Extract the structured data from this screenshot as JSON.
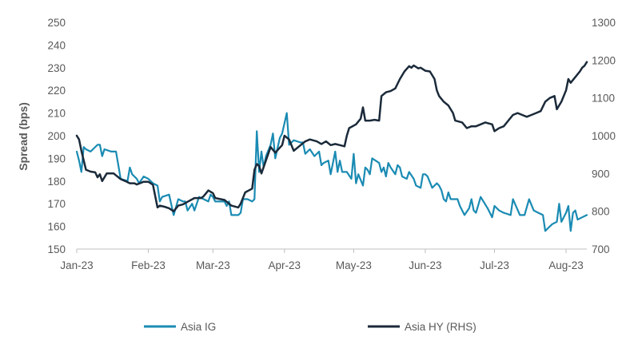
{
  "chart_data": {
    "type": "line",
    "title": "",
    "xlabel": "",
    "ylabel": "Spread (bps)",
    "ylim": [
      150,
      250
    ],
    "yticks": [
      150,
      160,
      170,
      180,
      190,
      200,
      210,
      220,
      230,
      240,
      250
    ],
    "y2lim": [
      700,
      1300
    ],
    "y2ticks": [
      700,
      800,
      900,
      1000,
      1100,
      1200,
      1300
    ],
    "xlim": [
      "2023-01-01",
      "2023-08-10"
    ],
    "xticks": [
      {
        "label": "Jan-23",
        "date": "2023-01-01"
      },
      {
        "label": "Feb-23",
        "date": "2023-02-01"
      },
      {
        "label": "Mar-23",
        "date": "2023-03-01"
      },
      {
        "label": "Apr-23",
        "date": "2023-04-01"
      },
      {
        "label": "May-23",
        "date": "2023-05-01"
      },
      {
        "label": "Jun-23",
        "date": "2023-06-01"
      },
      {
        "label": "Jul-23",
        "date": "2023-07-01"
      },
      {
        "label": "Aug-23",
        "date": "2023-08-01"
      }
    ],
    "grid": false,
    "legend": "bottom",
    "series": [
      {
        "name": "Asia IG",
        "axis": "left",
        "color": "#1a8bb3",
        "points": [
          [
            "2023-01-01",
            193
          ],
          [
            "2023-01-02",
            189
          ],
          [
            "2023-01-03",
            184
          ],
          [
            "2023-01-04",
            195
          ],
          [
            "2023-01-05",
            194
          ],
          [
            "2023-01-07",
            193
          ],
          [
            "2023-01-10",
            196
          ],
          [
            "2023-01-11",
            196
          ],
          [
            "2023-01-12",
            191
          ],
          [
            "2023-01-13",
            194
          ],
          [
            "2023-01-16",
            193
          ],
          [
            "2023-01-18",
            193
          ],
          [
            "2023-01-19",
            187
          ],
          [
            "2023-01-20",
            181
          ],
          [
            "2023-01-23",
            180
          ],
          [
            "2023-01-24",
            186
          ],
          [
            "2023-01-25",
            183
          ],
          [
            "2023-01-27",
            181
          ],
          [
            "2023-01-28",
            179
          ],
          [
            "2023-01-30",
            182
          ],
          [
            "2023-02-01",
            181
          ],
          [
            "2023-02-03",
            179
          ],
          [
            "2023-02-05",
            178
          ],
          [
            "2023-02-06",
            171
          ],
          [
            "2023-02-07",
            173
          ],
          [
            "2023-02-10",
            174
          ],
          [
            "2023-02-12",
            165
          ],
          [
            "2023-02-14",
            172
          ],
          [
            "2023-02-16",
            171
          ],
          [
            "2023-02-17",
            171
          ],
          [
            "2023-02-18",
            167
          ],
          [
            "2023-02-20",
            170
          ],
          [
            "2023-02-21",
            167
          ],
          [
            "2023-02-23",
            173
          ],
          [
            "2023-02-27",
            171
          ],
          [
            "2023-02-28",
            174
          ],
          [
            "2023-03-01",
            173
          ],
          [
            "2023-03-02",
            171
          ],
          [
            "2023-03-06",
            171
          ],
          [
            "2023-03-07",
            169
          ],
          [
            "2023-03-08",
            171
          ],
          [
            "2023-03-09",
            165
          ],
          [
            "2023-03-12",
            165
          ],
          [
            "2023-03-13",
            166
          ],
          [
            "2023-03-14",
            172
          ],
          [
            "2023-03-16",
            172
          ],
          [
            "2023-03-18",
            171
          ],
          [
            "2023-03-19",
            172
          ],
          [
            "2023-03-20",
            202
          ],
          [
            "2023-03-21",
            184
          ],
          [
            "2023-03-22",
            193
          ],
          [
            "2023-03-23",
            186
          ],
          [
            "2023-03-24",
            191
          ],
          [
            "2023-03-26",
            196
          ],
          [
            "2023-03-27",
            201
          ],
          [
            "2023-03-28",
            190
          ],
          [
            "2023-03-30",
            199
          ],
          [
            "2023-03-31",
            201
          ],
          [
            "2023-04-02",
            210
          ],
          [
            "2023-04-03",
            196
          ],
          [
            "2023-04-05",
            198
          ],
          [
            "2023-04-08",
            197
          ],
          [
            "2023-04-09",
            197
          ],
          [
            "2023-04-10",
            192
          ],
          [
            "2023-04-12",
            194
          ],
          [
            "2023-04-14",
            191
          ],
          [
            "2023-04-16",
            193
          ],
          [
            "2023-04-17",
            187
          ],
          [
            "2023-04-18",
            188
          ],
          [
            "2023-04-20",
            189
          ],
          [
            "2023-04-21",
            183
          ],
          [
            "2023-04-23",
            193
          ],
          [
            "2023-04-24",
            184
          ],
          [
            "2023-04-25",
            189
          ],
          [
            "2023-04-26",
            184
          ],
          [
            "2023-04-28",
            184
          ],
          [
            "2023-04-30",
            181
          ],
          [
            "2023-05-01",
            192
          ],
          [
            "2023-05-02",
            179
          ],
          [
            "2023-05-03",
            183
          ],
          [
            "2023-05-05",
            178
          ],
          [
            "2023-05-06",
            186
          ],
          [
            "2023-05-07",
            185
          ],
          [
            "2023-05-08",
            183
          ],
          [
            "2023-05-09",
            190
          ],
          [
            "2023-05-12",
            188
          ],
          [
            "2023-05-13",
            184
          ],
          [
            "2023-05-14",
            186
          ],
          [
            "2023-05-15",
            182
          ],
          [
            "2023-05-16",
            188
          ],
          [
            "2023-05-17",
            186
          ],
          [
            "2023-05-19",
            183
          ],
          [
            "2023-05-20",
            187
          ],
          [
            "2023-05-21",
            186
          ],
          [
            "2023-05-22",
            182
          ],
          [
            "2023-05-24",
            181
          ],
          [
            "2023-05-25",
            184
          ],
          [
            "2023-05-27",
            181
          ],
          [
            "2023-05-28",
            178
          ],
          [
            "2023-05-30",
            177
          ],
          [
            "2023-05-31",
            183
          ],
          [
            "2023-06-01",
            183
          ],
          [
            "2023-06-02",
            182
          ],
          [
            "2023-06-04",
            177
          ],
          [
            "2023-06-06",
            179
          ],
          [
            "2023-06-07",
            178
          ],
          [
            "2023-06-08",
            176
          ],
          [
            "2023-06-09",
            172
          ],
          [
            "2023-06-10",
            171
          ],
          [
            "2023-06-11",
            175
          ],
          [
            "2023-06-12",
            172
          ],
          [
            "2023-06-15",
            172
          ],
          [
            "2023-06-16",
            169
          ],
          [
            "2023-06-18",
            165
          ],
          [
            "2023-06-20",
            168
          ],
          [
            "2023-06-21",
            172
          ],
          [
            "2023-06-22",
            167
          ],
          [
            "2023-06-23",
            166
          ],
          [
            "2023-06-25",
            173
          ],
          [
            "2023-06-28",
            168
          ],
          [
            "2023-06-30",
            164
          ],
          [
            "2023-07-01",
            169
          ],
          [
            "2023-07-03",
            167
          ],
          [
            "2023-07-05",
            166
          ],
          [
            "2023-07-08",
            165
          ],
          [
            "2023-07-09",
            172
          ],
          [
            "2023-07-12",
            165
          ],
          [
            "2023-07-14",
            165
          ],
          [
            "2023-07-16",
            172
          ],
          [
            "2023-07-18",
            167
          ],
          [
            "2023-07-20",
            166
          ],
          [
            "2023-07-22",
            165
          ],
          [
            "2023-07-23",
            158
          ],
          [
            "2023-07-24",
            159
          ],
          [
            "2023-07-26",
            161
          ],
          [
            "2023-07-28",
            162
          ],
          [
            "2023-07-29",
            170
          ],
          [
            "2023-07-30",
            162
          ],
          [
            "2023-08-01",
            166
          ],
          [
            "2023-08-02",
            169
          ],
          [
            "2023-08-03",
            158
          ],
          [
            "2023-08-04",
            166
          ],
          [
            "2023-08-05",
            167
          ],
          [
            "2023-08-06",
            163
          ],
          [
            "2023-08-08",
            164
          ],
          [
            "2023-08-10",
            165
          ]
        ]
      },
      {
        "name": "Asia HY (RHS)",
        "axis": "right",
        "color": "#1b2a3a",
        "points": [
          [
            "2023-01-01",
            1000
          ],
          [
            "2023-01-02",
            990
          ],
          [
            "2023-01-03",
            960
          ],
          [
            "2023-01-05",
            910
          ],
          [
            "2023-01-07",
            905
          ],
          [
            "2023-01-09",
            903
          ],
          [
            "2023-01-10",
            890
          ],
          [
            "2023-01-11",
            898
          ],
          [
            "2023-01-12",
            880
          ],
          [
            "2023-01-14",
            900
          ],
          [
            "2023-01-17",
            900
          ],
          [
            "2023-01-18",
            895
          ],
          [
            "2023-01-20",
            885
          ],
          [
            "2023-01-22",
            880
          ],
          [
            "2023-01-24",
            874
          ],
          [
            "2023-01-26",
            874
          ],
          [
            "2023-01-27",
            871
          ],
          [
            "2023-01-30",
            878
          ],
          [
            "2023-02-01",
            878
          ],
          [
            "2023-02-03",
            870
          ],
          [
            "2023-02-05",
            810
          ],
          [
            "2023-02-06",
            815
          ],
          [
            "2023-02-08",
            812
          ],
          [
            "2023-02-10",
            808
          ],
          [
            "2023-02-12",
            800
          ],
          [
            "2023-02-14",
            815
          ],
          [
            "2023-02-16",
            818
          ],
          [
            "2023-02-18",
            825
          ],
          [
            "2023-02-21",
            835
          ],
          [
            "2023-02-24",
            835
          ],
          [
            "2023-02-25",
            840
          ],
          [
            "2023-02-27",
            855
          ],
          [
            "2023-03-01",
            848
          ],
          [
            "2023-03-02",
            835
          ],
          [
            "2023-03-06",
            830
          ],
          [
            "2023-03-07",
            825
          ],
          [
            "2023-03-09",
            815
          ],
          [
            "2023-03-12",
            810
          ],
          [
            "2023-03-13",
            820
          ],
          [
            "2023-03-15",
            850
          ],
          [
            "2023-03-18",
            860
          ],
          [
            "2023-03-19",
            910
          ],
          [
            "2023-03-20",
            925
          ],
          [
            "2023-03-21",
            920
          ],
          [
            "2023-03-22",
            900
          ],
          [
            "2023-03-24",
            935
          ],
          [
            "2023-03-26",
            970
          ],
          [
            "2023-03-28",
            955
          ],
          [
            "2023-03-31",
            975
          ],
          [
            "2023-04-01",
            1000
          ],
          [
            "2023-04-03",
            990
          ],
          [
            "2023-04-05",
            960
          ],
          [
            "2023-04-07",
            970
          ],
          [
            "2023-04-10",
            985
          ],
          [
            "2023-04-12",
            990
          ],
          [
            "2023-04-15",
            985
          ],
          [
            "2023-04-17",
            978
          ],
          [
            "2023-04-19",
            985
          ],
          [
            "2023-04-21",
            975
          ],
          [
            "2023-04-23",
            978
          ],
          [
            "2023-04-25",
            975
          ],
          [
            "2023-04-27",
            972
          ],
          [
            "2023-04-28",
            1000
          ],
          [
            "2023-04-29",
            1020
          ],
          [
            "2023-05-02",
            1030
          ],
          [
            "2023-05-04",
            1045
          ],
          [
            "2023-05-05",
            1075
          ],
          [
            "2023-05-06",
            1040
          ],
          [
            "2023-05-08",
            1040
          ],
          [
            "2023-05-10",
            1042
          ],
          [
            "2023-05-12",
            1040
          ],
          [
            "2023-05-13",
            1105
          ],
          [
            "2023-05-15",
            1115
          ],
          [
            "2023-05-17",
            1118
          ],
          [
            "2023-05-19",
            1125
          ],
          [
            "2023-05-21",
            1150
          ],
          [
            "2023-05-23",
            1170
          ],
          [
            "2023-05-25",
            1184
          ],
          [
            "2023-05-26",
            1180
          ],
          [
            "2023-05-27",
            1186
          ],
          [
            "2023-05-29",
            1178
          ],
          [
            "2023-05-30",
            1180
          ],
          [
            "2023-06-01",
            1172
          ],
          [
            "2023-06-03",
            1170
          ],
          [
            "2023-06-05",
            1150
          ],
          [
            "2023-06-06",
            1120
          ],
          [
            "2023-06-07",
            1105
          ],
          [
            "2023-06-09",
            1090
          ],
          [
            "2023-06-11",
            1080
          ],
          [
            "2023-06-13",
            1060
          ],
          [
            "2023-06-14",
            1040
          ],
          [
            "2023-06-17",
            1035
          ],
          [
            "2023-06-19",
            1020
          ],
          [
            "2023-06-21",
            1025
          ],
          [
            "2023-06-23",
            1025
          ],
          [
            "2023-06-25",
            1030
          ],
          [
            "2023-06-27",
            1035
          ],
          [
            "2023-06-30",
            1030
          ],
          [
            "2023-07-01",
            1012
          ],
          [
            "2023-07-03",
            1020
          ],
          [
            "2023-07-05",
            1025
          ],
          [
            "2023-07-07",
            1040
          ],
          [
            "2023-07-09",
            1055
          ],
          [
            "2023-07-11",
            1060
          ],
          [
            "2023-07-13",
            1055
          ],
          [
            "2023-07-15",
            1050
          ],
          [
            "2023-07-17",
            1055
          ],
          [
            "2023-07-19",
            1060
          ],
          [
            "2023-07-21",
            1065
          ],
          [
            "2023-07-23",
            1090
          ],
          [
            "2023-07-25",
            1100
          ],
          [
            "2023-07-27",
            1105
          ],
          [
            "2023-07-28",
            1070
          ],
          [
            "2023-07-30",
            1090
          ],
          [
            "2023-08-01",
            1120
          ],
          [
            "2023-08-02",
            1150
          ],
          [
            "2023-08-03",
            1140
          ],
          [
            "2023-08-05",
            1155
          ],
          [
            "2023-08-07",
            1170
          ],
          [
            "2023-08-08",
            1180
          ],
          [
            "2023-08-09",
            1185
          ],
          [
            "2023-08-10",
            1195
          ]
        ]
      }
    ]
  }
}
